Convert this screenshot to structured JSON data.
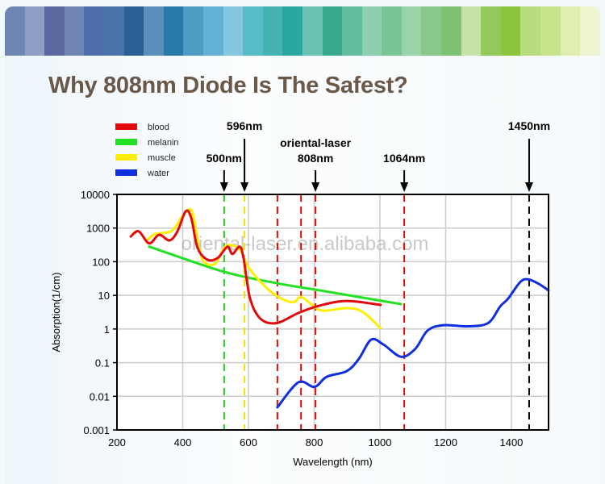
{
  "page": {
    "title": "Why 808nm Diode Is The Safest?",
    "watermark": "oriental-laser.en.alibaba.com"
  },
  "header_band_colors": [
    "#6f86b4",
    "#8e9fc6",
    "#5a6aa0",
    "#7185b4",
    "#4d6ea8",
    "#4a73a9",
    "#2a5f96",
    "#5a8fbb",
    "#2679a8",
    "#4c9cc4",
    "#62b0d4",
    "#86c7e0",
    "#58bcc6",
    "#46b2b4",
    "#2aa8a0",
    "#6cc3b4",
    "#3aaa8c",
    "#62bd9c",
    "#8ecfb0",
    "#7ac594",
    "#9ad3a8",
    "#88c88a",
    "#7cc270",
    "#c4e2a8",
    "#92c95a",
    "#8cc43e",
    "#b8dc80",
    "#c8e48a",
    "#e0eeb0",
    "#eef5d0"
  ],
  "chart_data": {
    "type": "line",
    "title": "",
    "xlabel": "Wavelength (nm)",
    "ylabel": "Absorption(1/cm)",
    "xlim": [
      200,
      1513
    ],
    "ylim": [
      0.001,
      10000
    ],
    "yscale": "log",
    "xticks": [
      200,
      400,
      600,
      800,
      1000,
      1200,
      1400
    ],
    "xtick_labels": [
      "200",
      "400",
      "600",
      "800",
      "1000",
      "1200",
      "1400"
    ],
    "yticks": [
      0.001,
      0.01,
      0.1,
      1,
      10,
      100,
      1000,
      10000
    ],
    "ytick_labels": [
      "0.001",
      "0.01",
      "0.1",
      "1",
      "10",
      "100",
      "1000",
      "10000"
    ],
    "grid": true,
    "legend_position": "top-left",
    "series": [
      {
        "name": "blood",
        "color": "#e00a0a",
        "x": [
          242,
          266,
          298,
          328,
          360,
          384,
          409,
          426,
          445,
          475,
          507,
          536,
          551,
          573,
          585,
          605,
          637,
          686,
          752,
          818,
          899,
          1002
        ],
        "y": [
          560,
          800,
          350,
          630,
          430,
          800,
          3150,
          2000,
          260,
          115,
          130,
          280,
          170,
          280,
          130,
          8,
          2,
          1.5,
          3,
          5,
          6.8,
          5.2
        ]
      },
      {
        "name": "melanin",
        "color": "#22e022",
        "x": [
          298,
          526,
          686,
          818,
          1064
        ],
        "y": [
          280,
          50,
          23,
          14,
          5.5
        ]
      },
      {
        "name": "muscle",
        "color": "#ffee00",
        "x": [
          291,
          315,
          367,
          401,
          428,
          450,
          465,
          499,
          526,
          548,
          575,
          598,
          637,
          686,
          735,
          760,
          794,
          826,
          899,
          948,
          1002
        ],
        "y": [
          430,
          660,
          830,
          2400,
          3150,
          260,
          98,
          87,
          260,
          310,
          220,
          74,
          25,
          9.6,
          6.2,
          9,
          5.2,
          3.5,
          4.2,
          3.2,
          1.05
        ]
      },
      {
        "name": "water",
        "color": "#1030e0",
        "x": [
          688,
          752,
          801,
          838,
          899,
          936,
          973,
          1010,
          1064,
          1108,
          1145,
          1194,
          1267,
          1329,
          1366,
          1390,
          1427,
          1451,
          1483,
          1513
        ],
        "y": [
          0.0047,
          0.026,
          0.019,
          0.038,
          0.056,
          0.13,
          0.48,
          0.35,
          0.15,
          0.26,
          0.9,
          1.3,
          1.2,
          1.5,
          4.7,
          8,
          25,
          30,
          22,
          14
        ]
      }
    ],
    "vlines": [
      {
        "x": 526,
        "color": "#22cc22"
      },
      {
        "x": 588,
        "color": "#f2e000"
      },
      {
        "x": 688,
        "color": "#e00a0a"
      },
      {
        "x": 760,
        "color": "#e00a0a"
      },
      {
        "x": 804,
        "color": "#e00a0a"
      },
      {
        "x": 1074,
        "color": "#e00a0a"
      },
      {
        "x": 1454,
        "color": "#000000"
      }
    ],
    "annotations": [
      {
        "x": 526,
        "lines": [
          "500nm"
        ],
        "level": "low"
      },
      {
        "x": 588,
        "lines": [
          "596nm"
        ],
        "level": "high"
      },
      {
        "x": 804,
        "lines": [
          "oriental-laser",
          "808nm"
        ],
        "level": "low"
      },
      {
        "x": 1074,
        "lines": [
          "1064nm"
        ],
        "level": "low"
      },
      {
        "x": 1454,
        "lines": [
          "1450nm"
        ],
        "level": "high"
      }
    ]
  }
}
